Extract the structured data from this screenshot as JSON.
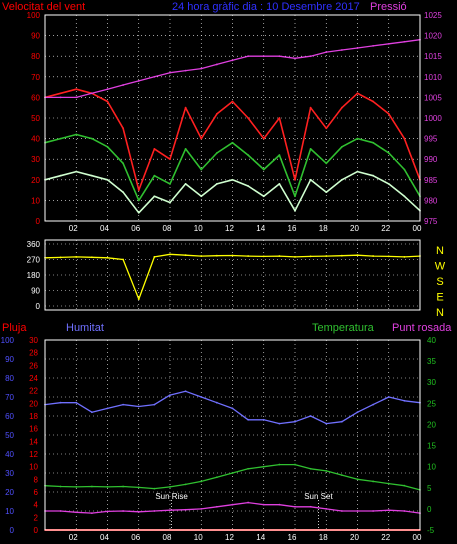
{
  "colors": {
    "wind_max": "#ff2020",
    "wind_avg": "#30c030",
    "wind_min": "#d0ffd0",
    "pressure": "#e040e0",
    "direction": "#ffff00",
    "rain": "#ff2020",
    "humidity": "#7070ff",
    "temperature": "#30c030",
    "dewpoint": "#e040e0",
    "grid": "#ffffff",
    "axis_red": "#ff0000",
    "axis_blue": "#5050ff",
    "axis_green": "#20c020"
  },
  "chart_data": [
    {
      "type": "line",
      "title": "24 hora gràfic dia : 10 Desembre 2017",
      "left_axis_title": "Velocitat del vent",
      "right_axis_title": "Pressió",
      "x_ticks": [
        "02",
        "04",
        "06",
        "08",
        "10",
        "12",
        "14",
        "16",
        "18",
        "20",
        "22",
        "00"
      ],
      "x": [
        0,
        1,
        2,
        3,
        4,
        5,
        6,
        7,
        8,
        9,
        10,
        11,
        12,
        13,
        14,
        15,
        16,
        17,
        18,
        19,
        20,
        21,
        22,
        23,
        24
      ],
      "ylim_left": [
        0,
        100
      ],
      "y_ticks_left": [
        0,
        10,
        20,
        30,
        40,
        50,
        60,
        70,
        80,
        90,
        100
      ],
      "ylim_right": [
        975,
        1025
      ],
      "y_ticks_right": [
        975,
        980,
        985,
        990,
        995,
        1000,
        1005,
        1010,
        1015,
        1020,
        1025
      ],
      "series": [
        {
          "key": "wind_max",
          "values": [
            60,
            62,
            64,
            62,
            58,
            45,
            15,
            35,
            30,
            55,
            40,
            52,
            58,
            50,
            40,
            50,
            20,
            55,
            45,
            55,
            62,
            58,
            52,
            40,
            20
          ]
        },
        {
          "key": "wind_avg",
          "values": [
            38,
            40,
            42,
            40,
            36,
            28,
            10,
            22,
            18,
            35,
            25,
            33,
            38,
            32,
            25,
            32,
            12,
            35,
            28,
            36,
            40,
            38,
            33,
            25,
            12
          ]
        },
        {
          "key": "wind_min",
          "values": [
            20,
            22,
            24,
            22,
            20,
            14,
            4,
            12,
            9,
            18,
            12,
            18,
            20,
            17,
            12,
            18,
            5,
            20,
            14,
            20,
            24,
            22,
            18,
            12,
            5
          ]
        },
        {
          "key": "pressure",
          "axis": "right",
          "values": [
            1005,
            1005,
            1005,
            1006,
            1007,
            1008,
            1009,
            1010,
            1011,
            1011.5,
            1012,
            1013,
            1014,
            1015,
            1015,
            1015,
            1014.5,
            1015,
            1016,
            1016.5,
            1017,
            1017.5,
            1018,
            1018.5,
            1019
          ]
        }
      ]
    },
    {
      "type": "line",
      "x_ticks": [
        "02",
        "04",
        "06",
        "08",
        "10",
        "12",
        "14",
        "16",
        "18",
        "20",
        "22",
        "00"
      ],
      "x": [
        0,
        1,
        2,
        3,
        4,
        5,
        6,
        7,
        8,
        9,
        10,
        11,
        12,
        13,
        14,
        15,
        16,
        17,
        18,
        19,
        20,
        21,
        22,
        23,
        24
      ],
      "ylim": [
        0,
        360
      ],
      "y_ticks": [
        0,
        90,
        180,
        270,
        360
      ],
      "direction_letters": [
        "N",
        "W",
        "S",
        "E",
        "N"
      ],
      "series": [
        {
          "key": "direction",
          "values": [
            280,
            282,
            285,
            283,
            280,
            270,
            40,
            285,
            300,
            295,
            290,
            292,
            293,
            290,
            288,
            290,
            285,
            288,
            290,
            292,
            295,
            290,
            288,
            285,
            290
          ]
        }
      ]
    },
    {
      "type": "line",
      "x_ticks": [
        "02",
        "04",
        "06",
        "08",
        "10",
        "12",
        "14",
        "16",
        "18",
        "20",
        "22",
        "00"
      ],
      "x": [
        0,
        1,
        2,
        3,
        4,
        5,
        6,
        7,
        8,
        9,
        10,
        11,
        12,
        13,
        14,
        15,
        16,
        17,
        18,
        19,
        20,
        21,
        22,
        23,
        24
      ],
      "labels": {
        "rain": "Pluja",
        "humidity": "Humitat",
        "temperature": "Temperatura",
        "dewpoint": "Punt rosada"
      },
      "ylim_rain": [
        0,
        30
      ],
      "y_ticks_rain": [
        0,
        2,
        4,
        6,
        8,
        10,
        12,
        14,
        16,
        18,
        20,
        22,
        24,
        26,
        28,
        30
      ],
      "ylim_humidity": [
        0,
        100
      ],
      "y_ticks_humidity": [
        0,
        10,
        20,
        30,
        40,
        50,
        60,
        70,
        80,
        90,
        100
      ],
      "ylim_temp": [
        -5,
        40
      ],
      "y_ticks_temp": [
        -5,
        0,
        5,
        10,
        15,
        20,
        25,
        30,
        35,
        40
      ],
      "annotations": [
        {
          "text": "Sun Rise",
          "x": 8.1
        },
        {
          "text": "Sun Set",
          "x": 17.5
        }
      ],
      "series": [
        {
          "key": "rain",
          "axis": "rain",
          "values": [
            0,
            0,
            0,
            0,
            0,
            0,
            0,
            0,
            0,
            0,
            0,
            0,
            0,
            0,
            0,
            0,
            0,
            0,
            0,
            0,
            0,
            0,
            0,
            0,
            0
          ]
        },
        {
          "key": "humidity",
          "axis": "humidity",
          "values": [
            66,
            67,
            67,
            62,
            64,
            66,
            65,
            66,
            71,
            73,
            70,
            67,
            64,
            58,
            58,
            56,
            57,
            60,
            56,
            57,
            62,
            66,
            70,
            68,
            67
          ]
        },
        {
          "key": "temperature",
          "axis": "temp",
          "values": [
            5.5,
            5.3,
            5.2,
            5.3,
            5.2,
            5.3,
            5.1,
            4.8,
            5.2,
            5.8,
            6.5,
            7.5,
            8.5,
            9.5,
            10,
            10.5,
            10.5,
            9.5,
            9,
            8,
            7,
            6.5,
            6,
            5.5,
            4.5
          ]
        },
        {
          "key": "dewpoint",
          "axis": "temp",
          "values": [
            -0.5,
            -0.5,
            -0.8,
            -1,
            -0.6,
            -0.5,
            -0.7,
            -0.5,
            -0.3,
            -0.2,
            0,
            0.5,
            1,
            1.5,
            1,
            1,
            0.5,
            0.5,
            0,
            -0.5,
            -0.5,
            -0.5,
            -0.3,
            -0.5,
            -1
          ]
        }
      ]
    }
  ]
}
